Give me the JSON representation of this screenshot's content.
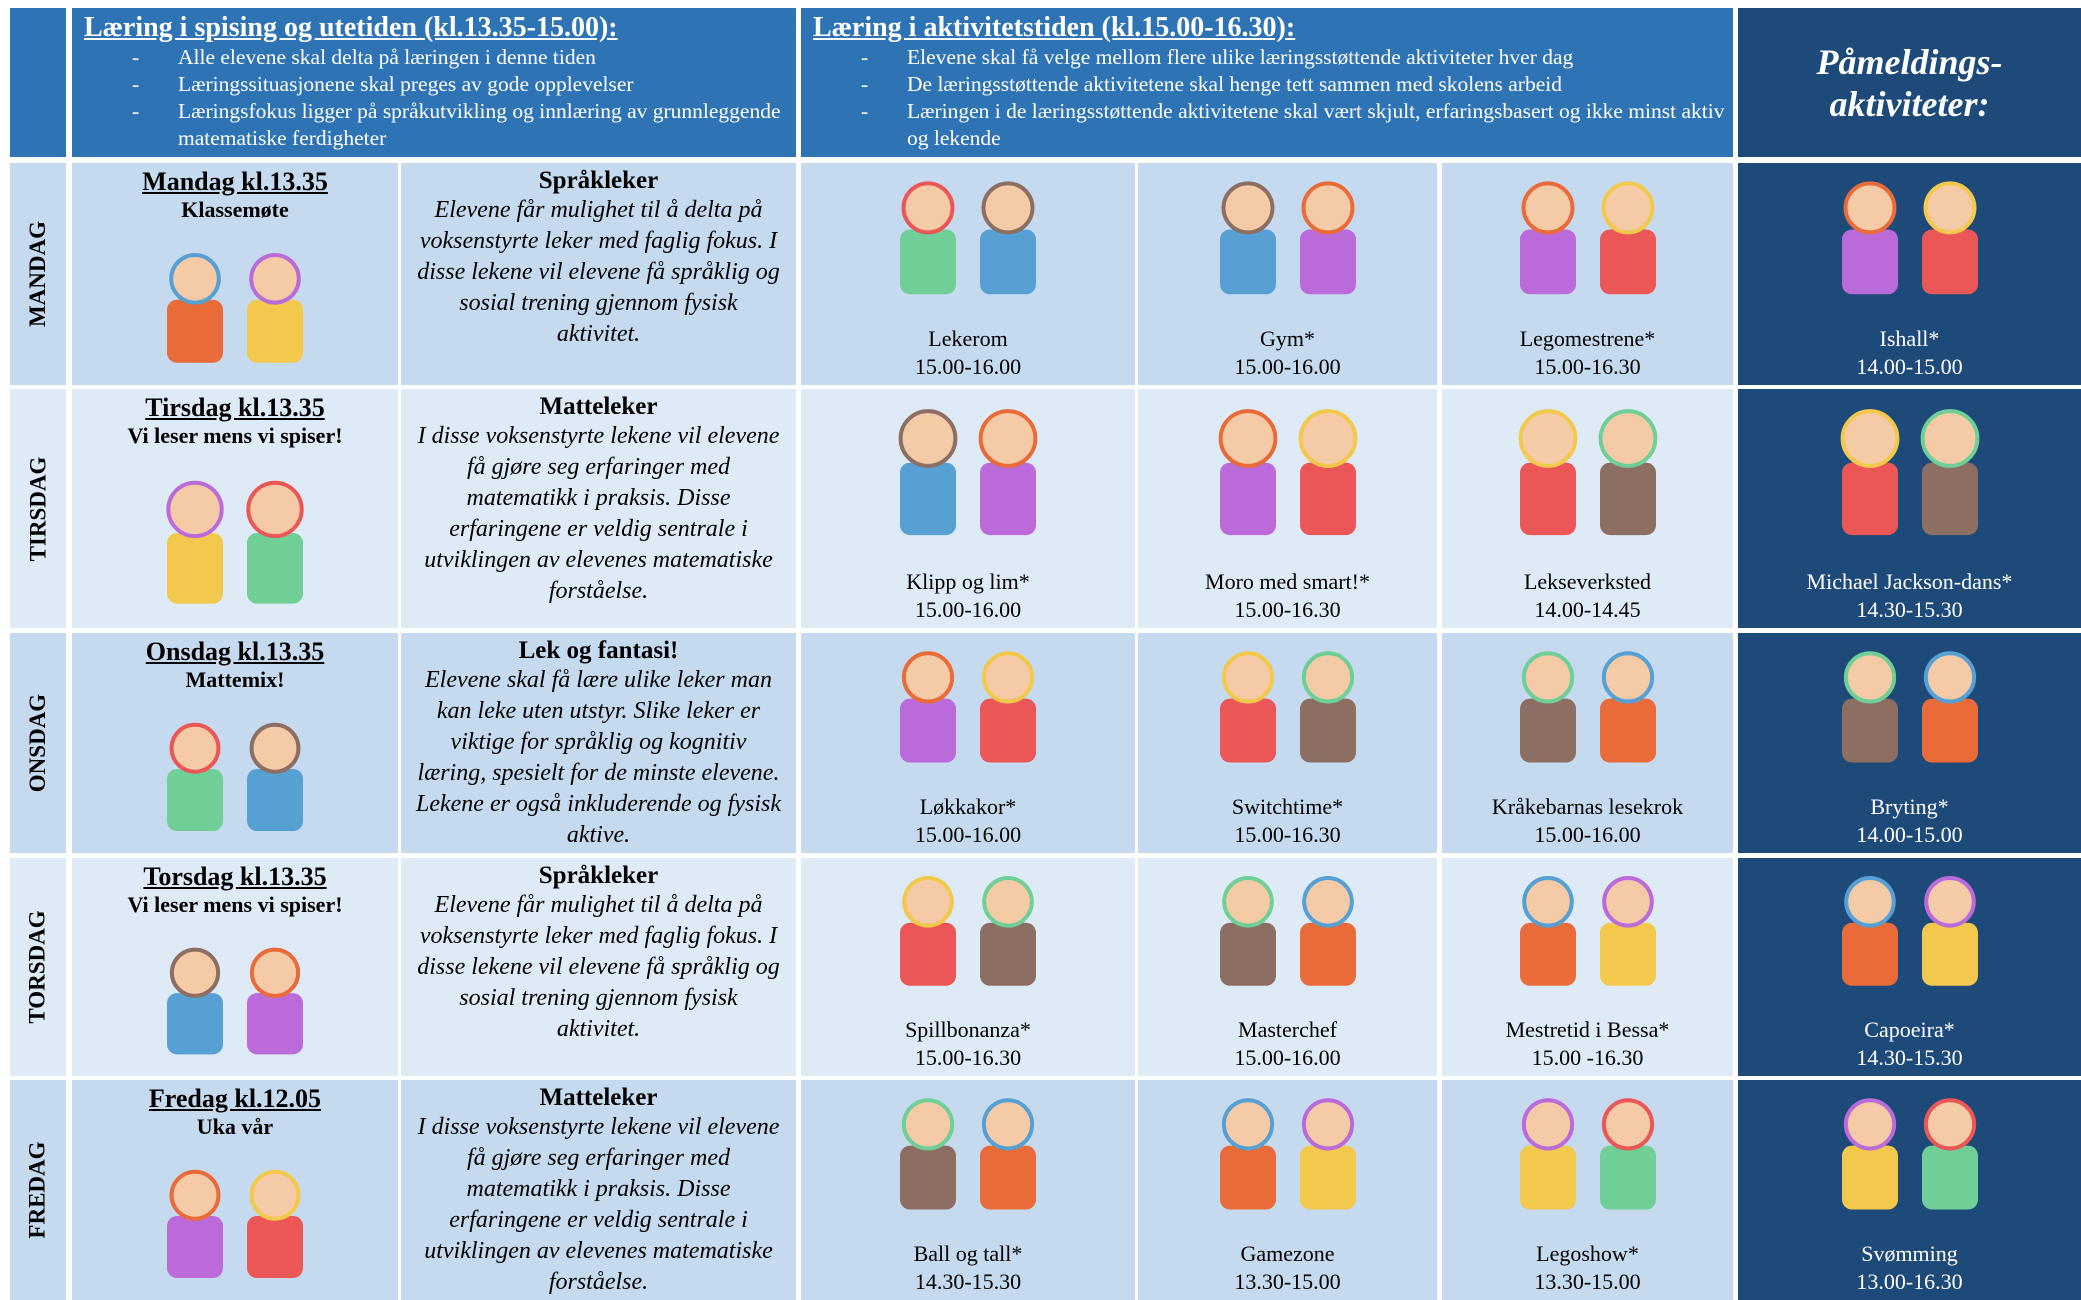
{
  "header": {
    "lunch": {
      "title": "Læring i spising og utetiden (kl.13.35-15.00):",
      "bullets": [
        "Alle elevene skal delta på læringen i denne tiden",
        "Læringssituasjonene skal preges av gode opplevelser",
        "Læringsfokus ligger på språkutvikling og innlæring av grunnleggende matematiske ferdigheter"
      ]
    },
    "activity": {
      "title": "Læring i aktivitetstiden (kl.15.00-16.30):",
      "bullets": [
        "Elevene skal få velge mellom flere ulike læringsstøttende aktiviteter hver dag",
        "De læringsstøttende aktivitetene skal henge tett sammen med skolens arbeid",
        "Læringen i de læringsstøttende aktivitetene skal vært skjult, erfaringsbasert og ikke minst aktiv og lekende"
      ]
    },
    "signup": [
      "Påmeldings-",
      "aktiviteter:"
    ]
  },
  "days": [
    {
      "day": "MANDAG",
      "lunch_title": "Mandag kl.13.35",
      "lunch_sub": "Klassemøte",
      "theme_title": "Språkleker",
      "theme_text": "Elevene får mulighet til å delta på voksenstyrte leker med faglig fokus. I disse lekene vil elevene få språklig og sosial trening gjennom fysisk aktivitet.",
      "activities": [
        {
          "name": "Lekerom",
          "time": "15.00-16.00"
        },
        {
          "name": "Gym*",
          "time": "15.00-16.00"
        },
        {
          "name": "Legomestrene*",
          "time": "15.00-16.30"
        }
      ],
      "signup": {
        "name": "Ishall*",
        "time": "14.00-15.00"
      }
    },
    {
      "day": "TIRSDAG",
      "lunch_title": "Tirsdag kl.13.35",
      "lunch_sub": "Vi leser mens vi spiser!",
      "theme_title": "Matteleker",
      "theme_text": "I disse voksenstyrte lekene vil elevene få gjøre seg erfaringer med matematikk i praksis. Disse erfaringene er veldig sentrale i utviklingen av elevenes matematiske forståelse.",
      "activities": [
        {
          "name": "Klipp og lim*",
          "time": "15.00-16.00"
        },
        {
          "name": "Moro med smart!*",
          "time": "15.00-16.30"
        },
        {
          "name": "Lekseverksted",
          "time": "14.00-14.45"
        }
      ],
      "signup": {
        "name": "Michael Jackson-dans*",
        "time": "14.30-15.30"
      }
    },
    {
      "day": "ONSDAG",
      "lunch_title": "Onsdag kl.13.35",
      "lunch_sub": "Mattemix!",
      "theme_title": "Lek og fantasi!",
      "theme_text": "Elevene skal få lære ulike leker man kan leke uten utstyr. Slike leker er viktige for språklig og kognitiv læring, spesielt for de minste elevene. Lekene er også inkluderende og fysisk aktive.",
      "activities": [
        {
          "name": "Løkkakor*",
          "time": "15.00-16.00"
        },
        {
          "name": "Switchtime*",
          "time": "15.00-16.30"
        },
        {
          "name": "Kråkebarnas lesekrok",
          "time": "15.00-16.00"
        }
      ],
      "signup": {
        "name": "Bryting*",
        "time": "14.00-15.00"
      }
    },
    {
      "day": "TORSDAG",
      "lunch_title": "Torsdag kl.13.35",
      "lunch_sub": "Vi leser mens vi spiser!",
      "theme_title": "Språkleker",
      "theme_text": "Elevene får mulighet til å delta på voksenstyrte leker med faglig fokus. I disse lekene vil elevene få språklig og sosial trening gjennom fysisk aktivitet.",
      "activities": [
        {
          "name": "Spillbonanza*",
          "time": "15.00-16.30"
        },
        {
          "name": "Masterchef",
          "time": "15.00-16.00"
        },
        {
          "name": "Mestretid i Bessa*",
          "time": "15.00 -16.30"
        }
      ],
      "signup": {
        "name": "Capoeira*",
        "time": "14.30-15.30"
      }
    },
    {
      "day": "FREDAG",
      "lunch_title": "Fredag kl.12.05",
      "lunch_sub": "Uka vår",
      "theme_title": "Matteleker",
      "theme_text": "I disse voksenstyrte lekene vil elevene få gjøre seg erfaringer med matematikk i praksis. Disse erfaringene er veldig sentrale i utviklingen av elevenes matematiske forståelse.",
      "activities": [
        {
          "name": "Ball og tall*",
          "time": "14.30-15.30"
        },
        {
          "name": "Gamezone",
          "time": "13.30-15.00"
        },
        {
          "name": "Legoshow*",
          "time": "13.30-15.00"
        }
      ],
      "signup": {
        "name": "Svømming",
        "time": "13.00-16.30"
      }
    }
  ]
}
